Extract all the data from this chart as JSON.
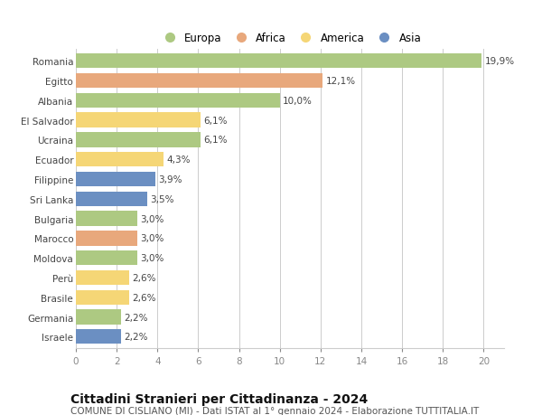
{
  "countries": [
    "Romania",
    "Egitto",
    "Albania",
    "El Salvador",
    "Ucraina",
    "Ecuador",
    "Filippine",
    "Sri Lanka",
    "Bulgaria",
    "Marocco",
    "Moldova",
    "Perù",
    "Brasile",
    "Germania",
    "Israele"
  ],
  "values": [
    19.9,
    12.1,
    10.0,
    6.1,
    6.1,
    4.3,
    3.9,
    3.5,
    3.0,
    3.0,
    3.0,
    2.6,
    2.6,
    2.2,
    2.2
  ],
  "labels": [
    "19,9%",
    "12,1%",
    "10,0%",
    "6,1%",
    "6,1%",
    "4,3%",
    "3,9%",
    "3,5%",
    "3,0%",
    "3,0%",
    "3,0%",
    "2,6%",
    "2,6%",
    "2,2%",
    "2,2%"
  ],
  "regions": [
    "Europa",
    "Africa",
    "Europa",
    "America",
    "Europa",
    "America",
    "Asia",
    "Asia",
    "Europa",
    "Africa",
    "Europa",
    "America",
    "America",
    "Europa",
    "Asia"
  ],
  "colors": {
    "Europa": "#adc982",
    "Africa": "#e8a87c",
    "America": "#f5d676",
    "Asia": "#6b8fc2"
  },
  "xlim": [
    0,
    21
  ],
  "xticks": [
    0,
    2,
    4,
    6,
    8,
    10,
    12,
    14,
    16,
    18,
    20
  ],
  "title": "Cittadini Stranieri per Cittadinanza - 2024",
  "subtitle": "COMUNE DI CISLIANO (MI) - Dati ISTAT al 1° gennaio 2024 - Elaborazione TUTTITALIA.IT",
  "background_color": "#ffffff",
  "grid_color": "#cccccc",
  "bar_height": 0.75,
  "title_fontsize": 10,
  "subtitle_fontsize": 7.5,
  "label_fontsize": 7.5,
  "tick_fontsize": 7.5,
  "legend_fontsize": 8.5
}
